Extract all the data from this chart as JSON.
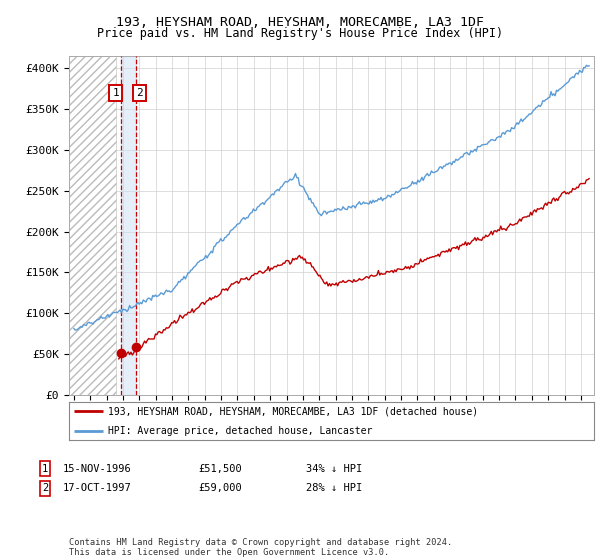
{
  "title": "193, HEYSHAM ROAD, HEYSHAM, MORECAMBE, LA3 1DF",
  "subtitle": "Price paid vs. HM Land Registry's House Price Index (HPI)",
  "ylabel_ticks": [
    "£0",
    "£50K",
    "£100K",
    "£150K",
    "£200K",
    "£250K",
    "£300K",
    "£350K",
    "£400K"
  ],
  "ytick_values": [
    0,
    50000,
    100000,
    150000,
    200000,
    250000,
    300000,
    350000,
    400000
  ],
  "ylim": [
    0,
    415000
  ],
  "xlim_start": 1993.7,
  "xlim_end": 2025.8,
  "hpi_color": "#5b9bd5",
  "price_color": "#c00000",
  "purchase1_date": 1996.875,
  "purchase1_price": 51500,
  "purchase2_date": 1997.79,
  "purchase2_price": 59000,
  "legend_label1": "193, HEYSHAM ROAD, HEYSHAM, MORECAMBE, LA3 1DF (detached house)",
  "legend_label2": "HPI: Average price, detached house, Lancaster",
  "table_row1": [
    "1",
    "15-NOV-1996",
    "£51,500",
    "34% ↓ HPI"
  ],
  "table_row2": [
    "2",
    "17-OCT-1997",
    "£59,000",
    "28% ↓ HPI"
  ],
  "footnote": "Contains HM Land Registry data © Crown copyright and database right 2024.\nThis data is licensed under the Open Government Licence v3.0.",
  "grid_color": "#d0d0d0",
  "bg_color": "#ffffff"
}
